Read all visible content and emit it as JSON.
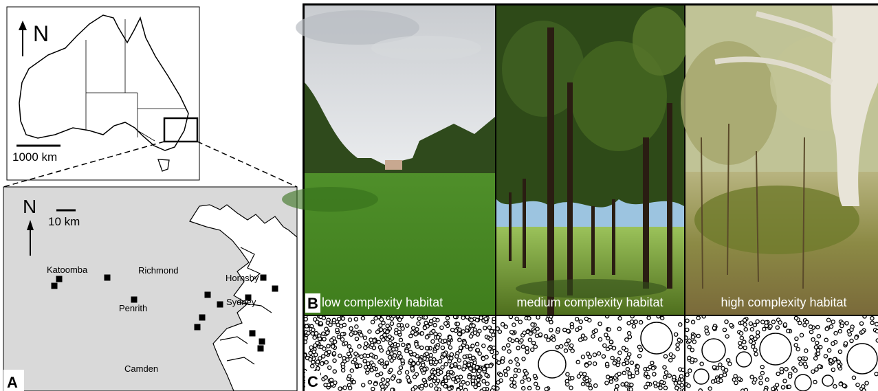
{
  "panel_a": {
    "label": "A",
    "inset": {
      "north": "N",
      "scale": "1000 km"
    },
    "map": {
      "north": "N",
      "scale": "10 km",
      "places": [
        "Katoomba",
        "Richmond",
        "Hornsby",
        "Penrith",
        "Sydney",
        "Camden"
      ]
    }
  },
  "panel_b": {
    "label": "B",
    "photos": [
      "low complexity habitat",
      "medium complexity habitat",
      "high complexity habitat"
    ]
  },
  "panel_c": {
    "label": "C"
  }
}
